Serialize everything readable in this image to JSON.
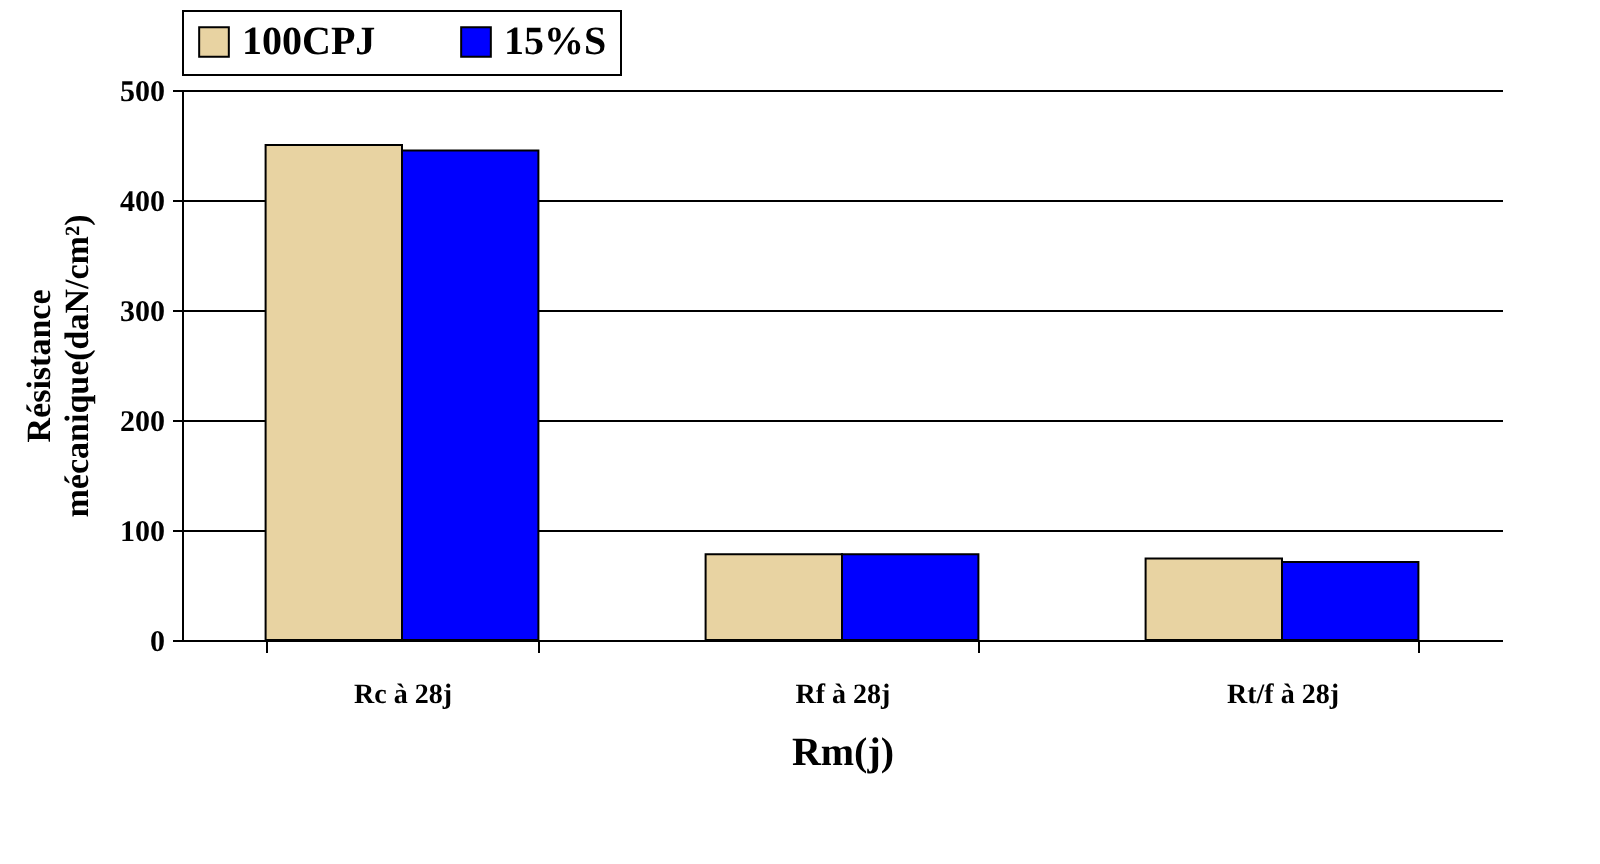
{
  "chart_data": {
    "type": "bar",
    "xlabel": "Rm(j)",
    "ylabel": "Résistance mécanique(daN/cm²)",
    "categories": [
      "Rc à 28j",
      "Rf à 28j",
      "Rt/f à 28j"
    ],
    "series": [
      {
        "name": "100CPJ",
        "color": "#e8d3a2",
        "values": [
          450,
          78,
          74
        ]
      },
      {
        "name": "15%S",
        "color": "#0000ff",
        "values": [
          445,
          78,
          71
        ]
      }
    ],
    "ylim": [
      0,
      500
    ],
    "yticks": [
      0,
      100,
      200,
      300,
      400,
      500
    ],
    "grid": "y",
    "legend": "top"
  }
}
